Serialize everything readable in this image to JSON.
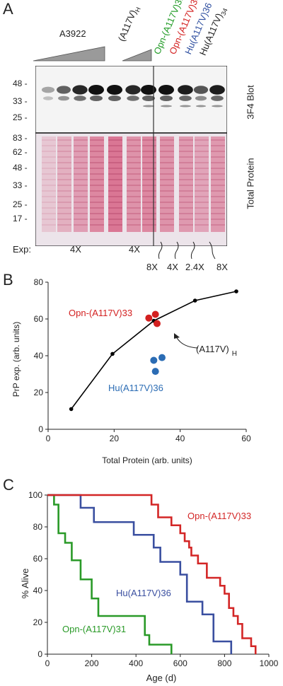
{
  "panelA": {
    "letter": "A",
    "group_label": "A3922",
    "col_labels": [
      {
        "text": "(A117V)",
        "sub": "H",
        "color": "#222222"
      },
      {
        "text": "Opn-(A117V)31",
        "sub": "",
        "color": "#1f9a24"
      },
      {
        "text": "Opn-(A117V)33",
        "sub": "",
        "color": "#d32020"
      },
      {
        "text": "Hu(A117V)36",
        "sub": "",
        "color": "#2f4fa0"
      },
      {
        "text": "Hu(A117V)",
        "sub": "34",
        "color": "#222222"
      }
    ],
    "blot_label": "3F4 Blot",
    "blot_ticks": [
      "48 -",
      "33 -",
      "25 -"
    ],
    "protein_label": "Total Protein",
    "protein_ticks": [
      "83 -",
      "62 -",
      "48 -",
      "33 -",
      "25 -",
      "17 -"
    ],
    "exp_label": "Exp:",
    "exp_values": [
      "4X",
      "4X",
      "8X",
      "4X",
      "2.4X",
      "8X"
    ]
  },
  "panelB": {
    "letter": "B",
    "chart_data": {
      "type": "scatter",
      "xlabel": "Total Protein (arb. units)",
      "ylabel": "PrP exp. (arb. units)",
      "xlim": [
        0,
        60
      ],
      "ylim": [
        0,
        80
      ],
      "xticks": [
        0,
        20,
        40,
        60
      ],
      "yticks": [
        0,
        20,
        40,
        60,
        80
      ],
      "series": [
        {
          "name": "(A117V)H",
          "color": "#000000",
          "style": "line-markers",
          "x": [
            7,
            19.5,
            32,
            44.5,
            57
          ],
          "y": [
            11,
            41,
            59,
            70,
            75
          ]
        },
        {
          "name": "Opn-(A117V)33",
          "color": "#d32020",
          "style": "markers",
          "x": [
            30.5,
            32.5,
            33
          ],
          "y": [
            60.5,
            62.5,
            57.5
          ]
        },
        {
          "name": "Hu(A117V)36",
          "color": "#2b6cb4",
          "style": "markers",
          "x": [
            32,
            34.5,
            32.5
          ],
          "y": [
            37.5,
            39,
            31.5
          ]
        }
      ],
      "annotations": [
        {
          "text": "Opn-(A117V)33",
          "color": "#d32020"
        },
        {
          "text": "(A117V)",
          "sub": "H",
          "color": "#222222"
        },
        {
          "text": "Hu(A117V)36",
          "color": "#2b6cb4"
        }
      ]
    }
  },
  "panelC": {
    "letter": "C",
    "chart_data": {
      "type": "line",
      "step": true,
      "xlabel": "Age (d)",
      "ylabel": "% Alive",
      "xlim": [
        0,
        1000
      ],
      "ylim": [
        0,
        100
      ],
      "xticks": [
        0,
        200,
        400,
        600,
        800,
        1000
      ],
      "yticks": [
        0,
        20,
        40,
        60,
        80,
        100
      ],
      "series": [
        {
          "name": "Opn-(A117V)31",
          "color": "#2a9a28",
          "x": [
            0,
            30,
            50,
            80,
            110,
            150,
            200,
            230,
            440,
            460,
            560
          ],
          "y": [
            100,
            94,
            76,
            70,
            59,
            47,
            35,
            24,
            12,
            6,
            0
          ]
        },
        {
          "name": "Hu(A117V)36",
          "color": "#3a4fa0",
          "x": [
            0,
            150,
            210,
            390,
            480,
            510,
            600,
            630,
            700,
            750,
            830
          ],
          "y": [
            100,
            92,
            83,
            75,
            67,
            58,
            50,
            33,
            25,
            8,
            0
          ]
        },
        {
          "name": "Opn-(A117V)33",
          "color": "#d32626",
          "x": [
            0,
            470,
            500,
            560,
            600,
            620,
            640,
            650,
            680,
            720,
            780,
            800,
            820,
            840,
            860,
            880,
            920,
            940
          ],
          "y": [
            100,
            94,
            86,
            81,
            76,
            71,
            67,
            62,
            57,
            48,
            43,
            38,
            29,
            24,
            19,
            10,
            5,
            0
          ]
        }
      ],
      "annotations": [
        {
          "text": "Opn-(A117V)33",
          "color": "#d32626"
        },
        {
          "text": "Hu(A117V)36",
          "color": "#3a4fa0"
        },
        {
          "text": "Opn-(A117V)31",
          "color": "#2a9a28"
        }
      ]
    }
  }
}
